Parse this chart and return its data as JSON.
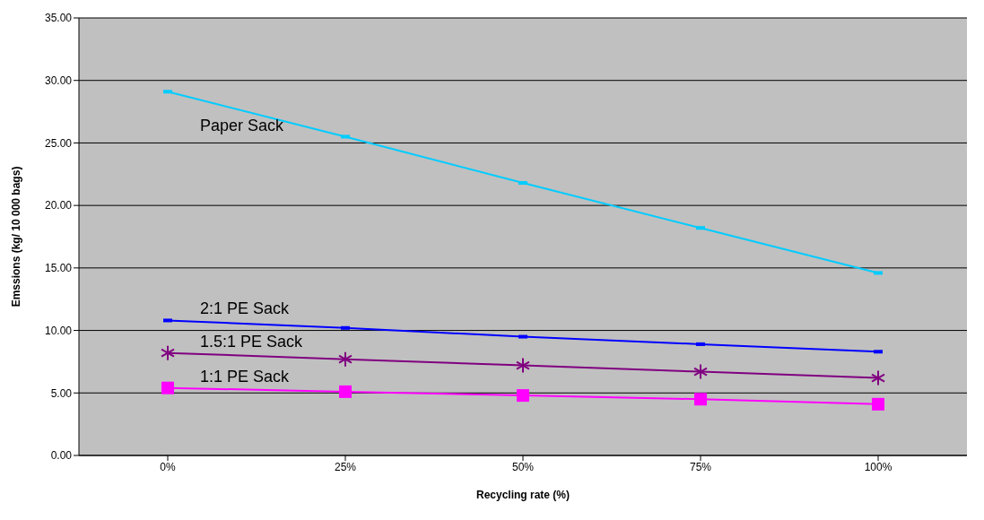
{
  "chart_data": {
    "type": "line",
    "xlabel": "Recycling rate (%)",
    "ylabel": "Emssions (kg/ 10 000 bags)",
    "categories": [
      "0%",
      "25%",
      "50%",
      "75%",
      "100%"
    ],
    "ylim": [
      0,
      35
    ],
    "yticks": [
      {
        "value": 0,
        "label": "0.00"
      },
      {
        "value": 5,
        "label": "5.00"
      },
      {
        "value": 10,
        "label": "10.00"
      },
      {
        "value": 15,
        "label": "15.00"
      },
      {
        "value": 20,
        "label": "20.00"
      },
      {
        "value": 25,
        "label": "25.00"
      },
      {
        "value": 30,
        "label": "30.00"
      },
      {
        "value": 35,
        "label": "35.00"
      }
    ],
    "grid": "y",
    "legend": false,
    "line_style": "solid",
    "series": [
      {
        "name": "Paper Sack",
        "color": "#00ccff",
        "marker": "square",
        "values": [
          29.1,
          25.5,
          21.8,
          18.2,
          14.6
        ]
      },
      {
        "name": "2:1 PE Sack",
        "color": "#0000ff",
        "marker": "square",
        "values": [
          10.8,
          10.2,
          9.5,
          8.9,
          8.3
        ]
      },
      {
        "name": "1.5:1 PE Sack",
        "color": "#800080",
        "marker": "cross",
        "values": [
          8.2,
          7.7,
          7.2,
          6.7,
          6.2
        ]
      },
      {
        "name": "1:1 PE Sack",
        "color": "#ff00ff",
        "marker": "square",
        "values": [
          5.4,
          5.1,
          4.8,
          4.5,
          4.1
        ]
      }
    ]
  }
}
